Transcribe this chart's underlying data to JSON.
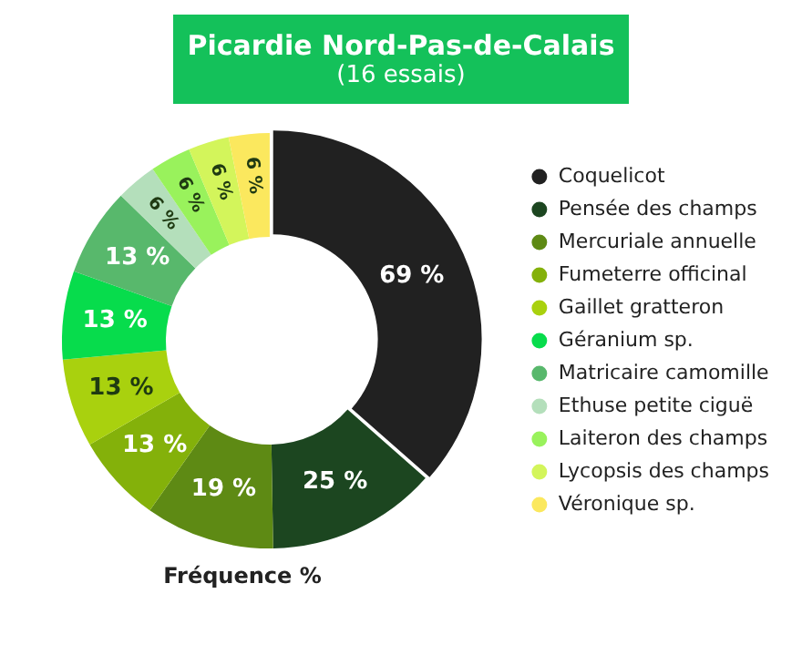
{
  "chart_data": {
    "type": "donut",
    "title": "Picardie Nord-Pas-de-Calais",
    "subtitle": "(16 essais)",
    "annotations": [
      "Fréquence %"
    ],
    "categories": [
      "Coquelicot",
      "Pensée des champs",
      "Mercuriale annuelle",
      "Fumeterre officinal",
      "Gaillet gratteron",
      "Géranium sp.",
      "Matricaire camomille",
      "Ethuse petite ciguë",
      "Laiteron des champs",
      "Lycopsis des champs",
      "Véronique sp."
    ],
    "values": [
      69,
      25,
      19,
      13,
      13,
      13,
      13,
      6,
      6,
      6,
      6
    ],
    "colors": [
      "#212121",
      "#1c4620",
      "#5e8a14",
      "#84b10a",
      "#a9d10e",
      "#07dc4c",
      "#58b86c",
      "#b4dfbb",
      "#99f25c",
      "#d3f55b",
      "#fbe85e"
    ],
    "value_labels": [
      "69 %",
      "25 %",
      "19 %",
      "13 %",
      "13 %",
      "13 %",
      "13 %",
      "6 %",
      "6 %",
      "6 %",
      "6 %"
    ],
    "legend": "right"
  }
}
